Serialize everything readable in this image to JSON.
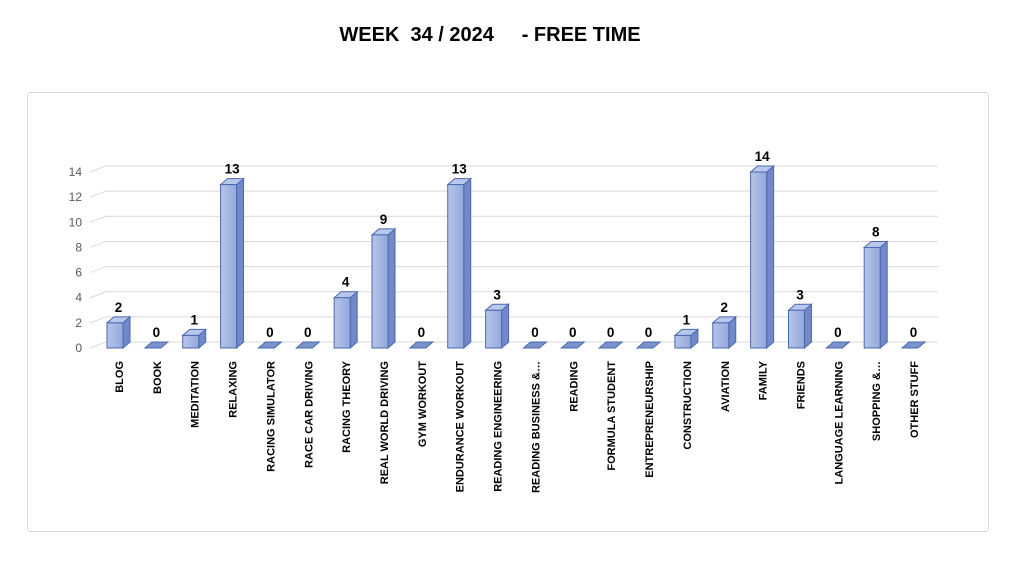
{
  "title": "WEEK  34 / 2024     - FREE TIME",
  "chart_data": {
    "type": "bar",
    "variant": "3d-column",
    "title": "WEEK  34 / 2024     - FREE TIME",
    "categories": [
      "BLOG",
      "BOOK",
      "MEDITATION",
      "RELAXING",
      "RACING SIMULATOR",
      "RACE CAR DRIVING",
      "RACING THEORY",
      "REAL WORLD DRIVING",
      "GYM WORKOUT",
      "ENDURANCE WORKOUT",
      "READING ENGINEERING",
      "READING BUSINESS &…",
      "READING",
      "FORMULA STUDENT",
      "ENTREPRENEURSHIP",
      "CONSTRUCTION",
      "AVIATION",
      "FAMILY",
      "FRIENDS",
      "LANGUAGE LEARNING",
      "SHOPPING &…",
      "OTHER STUFF"
    ],
    "values": [
      2,
      0,
      1,
      13,
      0,
      0,
      4,
      9,
      0,
      13,
      3,
      0,
      0,
      0,
      0,
      1,
      2,
      14,
      3,
      0,
      8,
      0
    ],
    "yticks": [
      0,
      2,
      4,
      6,
      8,
      10,
      12,
      14
    ],
    "ylim": [
      0,
      14
    ],
    "xlabel": "",
    "ylabel": "",
    "grid": true,
    "legend": "none",
    "data_labels": true,
    "colors": {
      "bar_front_light": "#b7c4ea",
      "bar_front_dark": "#92a9db",
      "bar_side": "#7288c9",
      "bar_top": "#bac7ec",
      "bar_outline": "#4a69ad",
      "zero_tile": "#7b93cd",
      "gridline": "#d9d9d9",
      "axis_label": "#595959",
      "data_label": "#000000",
      "title_color": "#000000",
      "chart_border": "#d9d9d9",
      "background": "#ffffff"
    }
  }
}
